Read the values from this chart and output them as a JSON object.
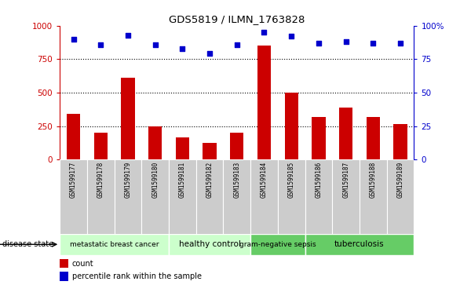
{
  "title": "GDS5819 / ILMN_1763828",
  "samples": [
    "GSM1599177",
    "GSM1599178",
    "GSM1599179",
    "GSM1599180",
    "GSM1599181",
    "GSM1599182",
    "GSM1599183",
    "GSM1599184",
    "GSM1599185",
    "GSM1599186",
    "GSM1599187",
    "GSM1599188",
    "GSM1599189"
  ],
  "counts": [
    340,
    200,
    610,
    250,
    165,
    125,
    200,
    850,
    500,
    320,
    390,
    320,
    265
  ],
  "percentiles": [
    90,
    86,
    93,
    86,
    83,
    79,
    86,
    95,
    92,
    87,
    88,
    87,
    87
  ],
  "disease_groups": [
    {
      "label": "metastatic breast cancer",
      "start": 0,
      "end": 4,
      "color": "#ccffcc"
    },
    {
      "label": "healthy control",
      "start": 4,
      "end": 7,
      "color": "#ccffcc"
    },
    {
      "label": "gram-negative sepsis",
      "start": 7,
      "end": 9,
      "color": "#66cc66"
    },
    {
      "label": "tuberculosis",
      "start": 9,
      "end": 13,
      "color": "#66cc66"
    }
  ],
  "bar_color": "#cc0000",
  "scatter_color": "#0000cc",
  "left_ylim": [
    0,
    1000
  ],
  "right_ylim": [
    0,
    100
  ],
  "left_yticks": [
    0,
    250,
    500,
    750,
    1000
  ],
  "right_yticks": [
    0,
    25,
    50,
    75,
    100
  ],
  "left_yticklabels": [
    "0",
    "250",
    "500",
    "750",
    "1000"
  ],
  "right_yticklabels": [
    "0",
    "25",
    "50",
    "75",
    "100%"
  ],
  "grid_values": [
    250,
    500,
    750
  ],
  "bar_width": 0.5,
  "disease_label": "disease state",
  "legend_count_label": "count",
  "legend_pct_label": "percentile rank within the sample",
  "tick_color_left": "#cc0000",
  "tick_color_right": "#0000cc",
  "sample_row_color": "#cccccc",
  "figsize": [
    5.86,
    3.63
  ],
  "dpi": 100
}
